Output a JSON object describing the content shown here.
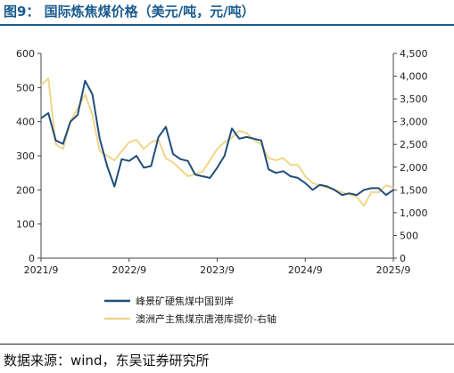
{
  "header": {
    "title": "图9：  国际炼焦煤价格（美元/吨，元/吨）"
  },
  "footer": {
    "source": "数据来源：wind，东吴证券研究所"
  },
  "colors": {
    "series_1": "#1f4e79",
    "series_2": "#f0d58a",
    "title": "#1a5b8f"
  },
  "chart_data": {
    "type": "line",
    "x_ticks": [
      "2021/9",
      "2022/9",
      "2023/9",
      "2024/9",
      "2025/9"
    ],
    "xlim": [
      "2021/9",
      "2025/9"
    ],
    "y_left": {
      "ylim": [
        0,
        600
      ],
      "ticks": [
        "0",
        "100",
        "200",
        "300",
        "400",
        "500",
        "600"
      ]
    },
    "y_right": {
      "ylim": [
        0,
        4500
      ],
      "ticks": [
        "0",
        "500",
        "1,000",
        "1,500",
        "2,000",
        "2,500",
        "3,000",
        "3,500",
        "4,000",
        "4,500"
      ]
    },
    "series": [
      {
        "name": "峰景矿硬焦煤中国到岸",
        "axis": "left",
        "x": [
          "2021/9",
          "2021/10",
          "2021/11",
          "2021/12",
          "2022/1",
          "2022/2",
          "2022/3",
          "2022/4",
          "2022/5",
          "2022/6",
          "2022/7",
          "2022/8",
          "2022/9",
          "2022/10",
          "2022/11",
          "2022/12",
          "2023/1",
          "2023/2",
          "2023/3",
          "2023/4",
          "2023/5",
          "2023/6",
          "2023/7",
          "2023/8",
          "2023/9",
          "2023/10",
          "2023/11",
          "2023/12",
          "2024/1",
          "2024/2",
          "2024/3",
          "2024/4",
          "2024/5",
          "2024/6",
          "2024/7",
          "2024/8",
          "2024/9",
          "2024/10",
          "2024/11",
          "2024/12",
          "2025/1",
          "2025/2",
          "2025/3",
          "2025/4",
          "2025/5",
          "2025/6",
          "2025/7",
          "2025/8",
          "2025/9"
        ],
        "values": [
          410,
          425,
          345,
          335,
          400,
          420,
          520,
          480,
          350,
          270,
          210,
          290,
          285,
          300,
          265,
          270,
          355,
          385,
          305,
          290,
          285,
          245,
          240,
          235,
          265,
          300,
          380,
          350,
          355,
          350,
          345,
          260,
          250,
          255,
          240,
          235,
          220,
          200,
          215,
          210,
          200,
          185,
          190,
          185,
          200,
          205,
          205,
          185,
          200
        ]
      },
      {
        "name": "澳洲产主焦煤京唐港库提价-右轴",
        "axis": "right",
        "x": [
          "2021/9",
          "2021/10",
          "2021/11",
          "2021/12",
          "2022/1",
          "2022/2",
          "2022/3",
          "2022/4",
          "2022/5",
          "2022/6",
          "2022/7",
          "2022/8",
          "2022/9",
          "2022/10",
          "2022/11",
          "2022/12",
          "2023/1",
          "2023/2",
          "2023/3",
          "2023/4",
          "2023/5",
          "2023/6",
          "2023/7",
          "2023/8",
          "2023/9",
          "2023/10",
          "2023/11",
          "2023/12",
          "2024/1",
          "2024/2",
          "2024/3",
          "2024/4",
          "2024/5",
          "2024/6",
          "2024/7",
          "2024/8",
          "2024/9",
          "2024/10",
          "2024/11",
          "2024/12",
          "2025/1",
          "2025/2",
          "2025/3",
          "2025/4",
          "2025/5",
          "2025/6",
          "2025/7",
          "2025/8",
          "2025/9"
        ],
        "values": [
          3800,
          3950,
          2500,
          2400,
          3000,
          3300,
          3600,
          3150,
          2350,
          2250,
          2150,
          2350,
          2550,
          2600,
          2400,
          2550,
          2600,
          2200,
          2100,
          1950,
          1800,
          1850,
          1900,
          2150,
          2400,
          2550,
          2650,
          2800,
          2750,
          2600,
          2500,
          2200,
          2150,
          2200,
          2050,
          2050,
          1800,
          1650,
          1600,
          1550,
          1500,
          1450,
          1400,
          1350,
          1150,
          1450,
          1450,
          1600,
          1550
        ]
      }
    ],
    "legend": "bottom-center"
  }
}
